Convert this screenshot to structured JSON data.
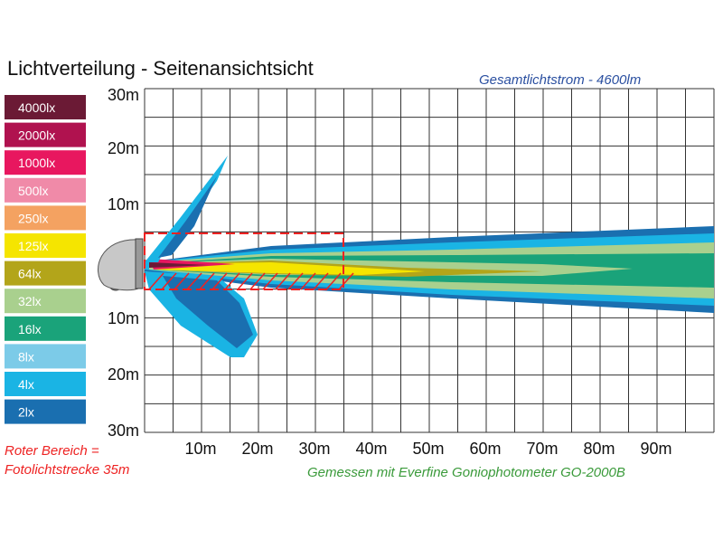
{
  "header": {
    "title": "Lichtverteilung - Seitenansichtsicht",
    "subtitle": "Gesamtlichtstrom -   4600lm"
  },
  "legend": [
    {
      "label": "4000lx",
      "color": "#6b1a35"
    },
    {
      "label": "2000lx",
      "color": "#b0124f"
    },
    {
      "label": "1000lx",
      "color": "#e8175f"
    },
    {
      "label": "500lx",
      "color": "#f08aa8"
    },
    {
      "label": "250lx",
      "color": "#f4a261"
    },
    {
      "label": "125lx",
      "color": "#f5e500"
    },
    {
      "label": "64lx",
      "color": "#b3a51a"
    },
    {
      "label": "32lx",
      "color": "#a9d08e"
    },
    {
      "label": "16lx",
      "color": "#1aa37a"
    },
    {
      "label": "8lx",
      "color": "#7ccbe8"
    },
    {
      "label": "4lx",
      "color": "#1ab4e4"
    },
    {
      "label": "2lx",
      "color": "#1a6fb0"
    }
  ],
  "y_axis": {
    "labels": [
      "30m",
      "20m",
      "10m",
      "10m",
      "20m",
      "30m"
    ]
  },
  "x_axis": {
    "labels": [
      "10m",
      "20m",
      "30m",
      "40m",
      "50m",
      "60m",
      "70m",
      "80m",
      "90m"
    ]
  },
  "notes": {
    "red_area": [
      "Roter Bereich =",
      "Fotolichtstrecke 35m"
    ],
    "measured": "Gemessen mit Everfine Goniophotometer GO-2000B"
  }
}
